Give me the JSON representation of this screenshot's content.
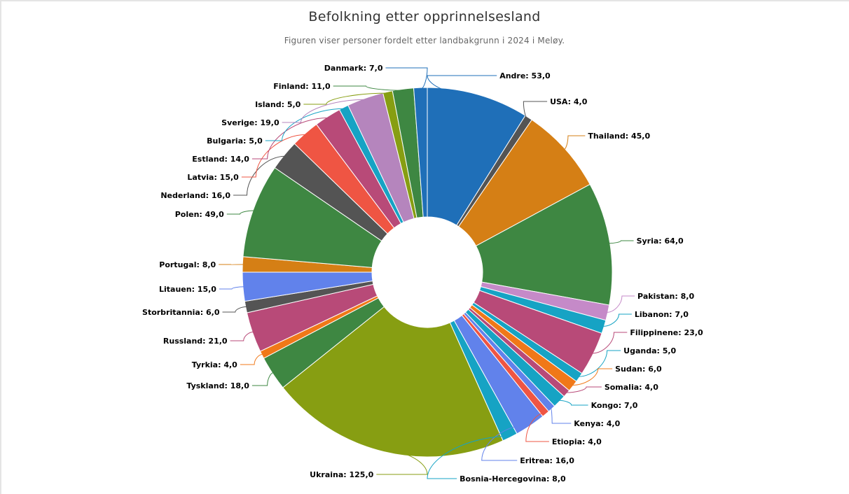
{
  "chart_data": {
    "type": "pie",
    "title": "Befolkning etter opprinnelsesland",
    "subtitle": "Figuren viser personer fordelt etter landbakgrunn i 2024 i Meløy.",
    "donut": true,
    "slices": [
      {
        "label": "Andre",
        "value": 53,
        "text": "Andre: 53,0",
        "color": "#1f6fb8"
      },
      {
        "label": "USA",
        "value": 4,
        "text": "USA: 4,0",
        "color": "#545454"
      },
      {
        "label": "Thailand",
        "value": 45,
        "text": "Thailand: 45,0",
        "color": "#d57f15"
      },
      {
        "label": "Syria",
        "value": 64,
        "text": "Syria: 64,0",
        "color": "#3e8742"
      },
      {
        "label": "Pakistan",
        "value": 8,
        "text": "Pakistan: 8,0",
        "color": "#c58ac8"
      },
      {
        "label": "Libanon",
        "value": 7,
        "text": "Libanon: 7,0",
        "color": "#16a3c4"
      },
      {
        "label": "Filippinene",
        "value": 23,
        "text": "Filippinene: 23,0",
        "color": "#b84a78"
      },
      {
        "label": "Uganda",
        "value": 5,
        "text": "Uganda: 5,0",
        "color": "#16a3c4"
      },
      {
        "label": "Sudan",
        "value": 6,
        "text": "Sudan: 6,0",
        "color": "#f07818"
      },
      {
        "label": "Somalia",
        "value": 4,
        "text": "Somalia: 4,0",
        "color": "#b84a78"
      },
      {
        "label": "Kongo",
        "value": 7,
        "text": "Kongo: 7,0",
        "color": "#16a3c4"
      },
      {
        "label": "Kenya",
        "value": 4,
        "text": "Kenya: 4,0",
        "color": "#6182eb"
      },
      {
        "label": "Etiopia",
        "value": 4,
        "text": "Etiopia: 4,0",
        "color": "#ef5543"
      },
      {
        "label": "Eritrea",
        "value": 16,
        "text": "Eritrea: 16,0",
        "color": "#6182eb"
      },
      {
        "label": "Bosnia-Hercegovina",
        "value": 8,
        "text": "Bosnia-Hercegovina: 8,0",
        "color": "#16a3c4"
      },
      {
        "label": "Ukraina",
        "value": 125,
        "text": "Ukraina: 125,0",
        "color": "#879e12"
      },
      {
        "label": "Tyskland",
        "value": 18,
        "text": "Tyskland: 18,0",
        "color": "#3e8742"
      },
      {
        "label": "Tyrkia",
        "value": 4,
        "text": "Tyrkia: 4,0",
        "color": "#f07818"
      },
      {
        "label": "Russland",
        "value": 21,
        "text": "Russland: 21,0",
        "color": "#b84a78"
      },
      {
        "label": "Storbritannia",
        "value": 6,
        "text": "Storbritannia: 6,0",
        "color": "#545454"
      },
      {
        "label": "Litauen",
        "value": 15,
        "text": "Litauen: 15,0",
        "color": "#6182eb"
      },
      {
        "label": "Portugal",
        "value": 8,
        "text": "Portugal: 8,0",
        "color": "#d57f15"
      },
      {
        "label": "Polen",
        "value": 49,
        "text": "Polen: 49,0",
        "color": "#3e8742"
      },
      {
        "label": "Nederland",
        "value": 16,
        "text": "Nederland: 16,0",
        "color": "#545454"
      },
      {
        "label": "Latvia",
        "value": 15,
        "text": "Latvia: 15,0",
        "color": "#ef5543"
      },
      {
        "label": "Estland",
        "value": 14,
        "text": "Estland: 14,0",
        "color": "#b84a78"
      },
      {
        "label": "Bulgaria",
        "value": 5,
        "text": "Bulgaria: 5,0",
        "color": "#16a3c4"
      },
      {
        "label": "Sverige",
        "value": 19,
        "text": "Sverige: 19,0",
        "color": "#b585bd"
      },
      {
        "label": "Island",
        "value": 5,
        "text": "Island: 5,0",
        "color": "#879e12"
      },
      {
        "label": "Finland",
        "value": 11,
        "text": "Finland: 11,0",
        "color": "#3e8742"
      },
      {
        "label": "Danmark",
        "value": 7,
        "text": "Danmark: 7,0",
        "color": "#1f6fb8"
      }
    ]
  }
}
